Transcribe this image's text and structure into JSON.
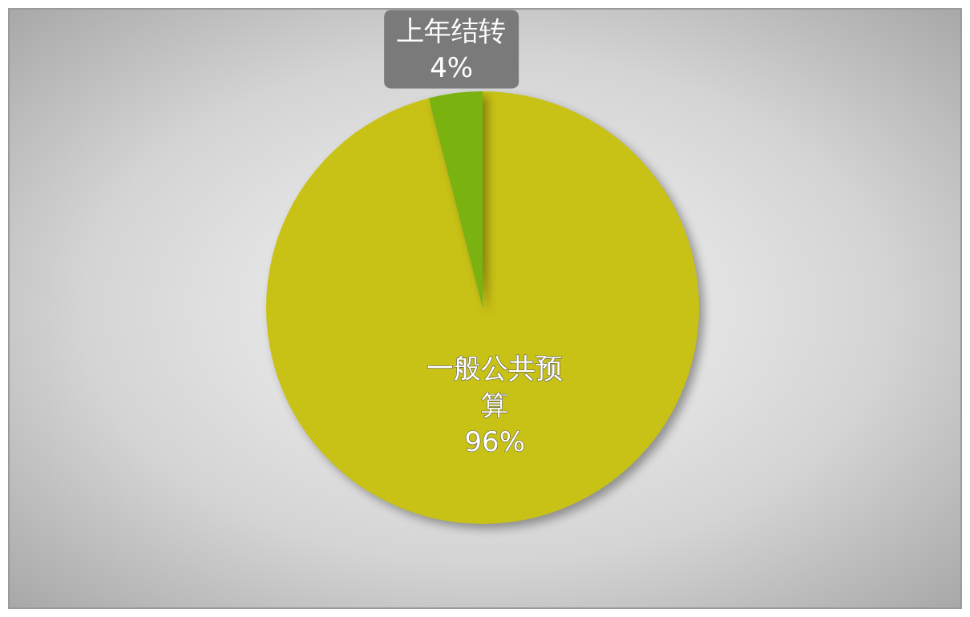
{
  "chart_data": {
    "type": "pie",
    "categories": [
      "一般公共预算",
      "上年结转"
    ],
    "values": [
      96,
      4
    ],
    "colors": [
      "#c8c216",
      "#7ab30f"
    ],
    "value_labels": [
      "96%",
      "4%"
    ]
  }
}
